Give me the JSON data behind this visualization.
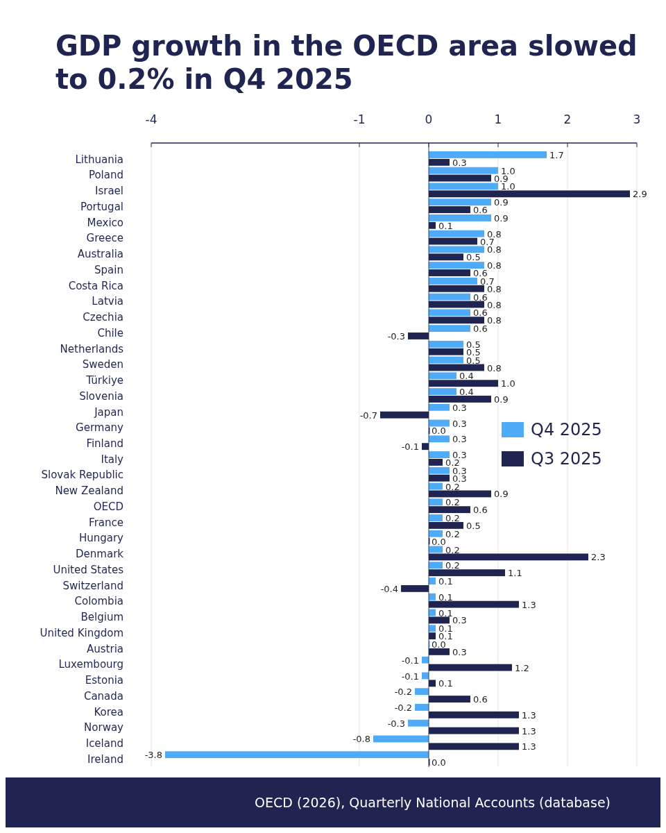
{
  "chart_data": {
    "type": "bar",
    "orientation": "horizontal",
    "title": "GDP growth in the OECD area slowed to 0.2% in Q4 2025",
    "categories": [
      "Lithuania",
      "Poland",
      "Israel",
      "Portugal",
      "Mexico",
      "Greece",
      "Australia",
      "Spain",
      "Costa Rica",
      "Latvia",
      "Czechia",
      "Chile",
      "Netherlands",
      "Sweden",
      "Türkiye",
      "Slovenia",
      "Japan",
      "Germany",
      "Finland",
      "Italy",
      "Slovak Republic",
      "New Zealand",
      "OECD",
      "France",
      "Hungary",
      "Denmark",
      "United States",
      "Switzerland",
      "Colombia",
      "Belgium",
      "United Kingdom",
      "Austria",
      "Luxembourg",
      "Estonia",
      "Canada",
      "Korea",
      "Norway",
      "Iceland",
      "Ireland"
    ],
    "series": [
      {
        "name": "Q4 2025",
        "color": "#4dabf7",
        "values": [
          1.7,
          1.0,
          1.0,
          0.9,
          0.9,
          0.8,
          0.8,
          0.8,
          0.7,
          0.6,
          0.6,
          0.6,
          0.5,
          0.5,
          0.4,
          0.4,
          0.3,
          0.3,
          0.3,
          0.3,
          0.3,
          0.2,
          0.2,
          0.2,
          0.2,
          0.2,
          0.2,
          0.1,
          0.1,
          0.1,
          0.1,
          0.0,
          -0.1,
          -0.1,
          -0.2,
          -0.2,
          -0.3,
          -0.8,
          -3.8
        ],
        "value_labels": [
          "1.7",
          "1.0",
          "1.0",
          "0.9",
          "0.9",
          "0.8",
          "0.8",
          "0.8",
          "0.7",
          "0.6",
          "0.6",
          "0.6",
          "0.5",
          "0.5",
          "0.4",
          "0.4",
          "0.3",
          "0.3",
          "0.3",
          "0.3",
          "0.3",
          "0.2",
          "0.2",
          "0.2",
          "0.2",
          "0.2",
          "0.2",
          "0.1",
          "0.1",
          "0.1",
          "0.1",
          "0.0",
          "-0.1",
          "-0.1",
          "-0.2",
          "-0.2",
          "-0.3",
          "-0.8",
          "-3.8"
        ]
      },
      {
        "name": "Q3 2025",
        "color": "#1f2550",
        "values": [
          0.3,
          0.9,
          2.9,
          0.6,
          0.1,
          0.7,
          0.5,
          0.6,
          0.8,
          0.8,
          0.8,
          -0.3,
          0.5,
          0.8,
          1.0,
          0.9,
          -0.7,
          0.0,
          -0.1,
          0.2,
          0.3,
          0.9,
          0.6,
          0.5,
          0.0,
          2.3,
          1.1,
          -0.4,
          1.3,
          0.3,
          0.1,
          0.3,
          1.2,
          0.1,
          0.6,
          1.3,
          1.3,
          1.3,
          0.0
        ],
        "value_labels": [
          "0.3",
          "0.9",
          "2.9",
          "0.6",
          "0.1",
          "0.7",
          "0.5",
          "0.6",
          "0.8",
          "0.8",
          "0.8",
          "-0.3",
          "0.5",
          "0.8",
          "1.0",
          "0.9",
          "-0.7",
          "0.0",
          "-0.1",
          "0.2",
          "0.3",
          "0.9",
          "0.6",
          "0.5",
          "0.0",
          "2.3",
          "1.1",
          "-0.4",
          "1.3",
          "0.3",
          "0.1",
          "0.3",
          "1.2",
          "0.1",
          "0.6",
          "1.3",
          "1.3",
          "1.3",
          "0.0"
        ]
      }
    ],
    "xlim": [
      -4,
      3
    ],
    "xticks": [
      -4,
      -1,
      0,
      1,
      2,
      3
    ],
    "grid": "x",
    "legend": "center right",
    "annotations": [
      "OECD (2026), Quarterly National Accounts (database)"
    ]
  }
}
